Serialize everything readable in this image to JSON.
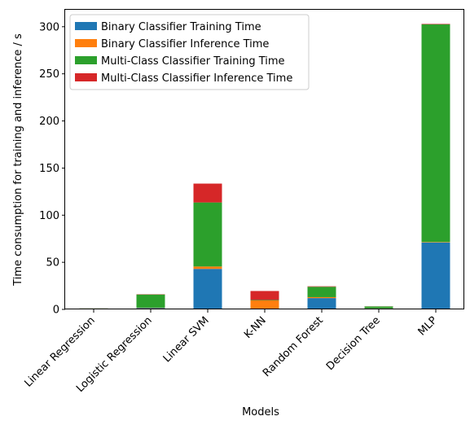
{
  "chart_data": {
    "type": "bar",
    "stacked": true,
    "categories": [
      "Linear Regression",
      "Logistic Regression",
      "Linear SVM",
      "K-NN",
      "Random Forest",
      "Decision Tree",
      "MLP"
    ],
    "series": [
      {
        "name": "Binary Classifier Training Time",
        "color": "#1f77b4",
        "values": [
          0.2,
          1.5,
          43,
          0.5,
          12,
          1,
          71
        ]
      },
      {
        "name": "Binary Classifier Inference Time",
        "color": "#ff7f0e",
        "values": [
          0.1,
          0.3,
          2.5,
          9,
          1,
          0.1,
          0.5
        ]
      },
      {
        "name": "Multi-Class Classifier Training Time",
        "color": "#2ca02c",
        "values": [
          0.7,
          14,
          68,
          0.5,
          11,
          2,
          231
        ]
      },
      {
        "name": "Multi-Class Classifier Inference Time",
        "color": "#d62728",
        "values": [
          0.05,
          0.3,
          20,
          9.5,
          0.5,
          0.1,
          0.5
        ]
      }
    ],
    "xlabel": "Models",
    "ylabel": "Time consumption for training and inference / s",
    "ylim": [
      0,
      318
    ],
    "yticks": [
      0,
      50,
      100,
      150,
      200,
      250,
      300
    ],
    "legend": "top-left",
    "grid": false
  }
}
